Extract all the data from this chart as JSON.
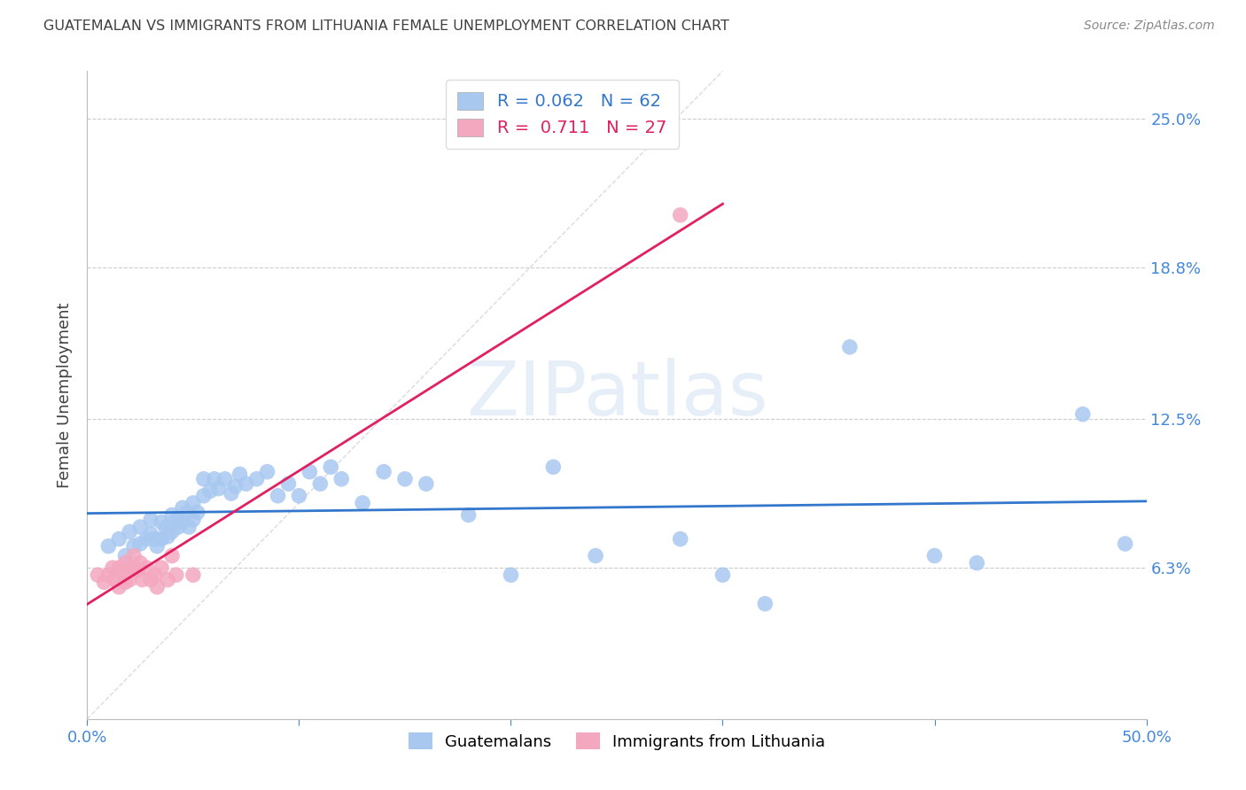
{
  "title": "GUATEMALAN VS IMMIGRANTS FROM LITHUANIA FEMALE UNEMPLOYMENT CORRELATION CHART",
  "source": "Source: ZipAtlas.com",
  "ylabel": "Female Unemployment",
  "ytick_labels": [
    "6.3%",
    "12.5%",
    "18.8%",
    "25.0%"
  ],
  "ytick_values": [
    0.063,
    0.125,
    0.188,
    0.25
  ],
  "xmin": 0.0,
  "xmax": 0.5,
  "ymin": 0.0,
  "ymax": 0.27,
  "legend_blue_r": "0.062",
  "legend_blue_n": "62",
  "legend_pink_r": "0.711",
  "legend_pink_n": "27",
  "blue_color": "#a8c8f0",
  "pink_color": "#f4a8c0",
  "blue_line_color": "#3377cc",
  "pink_line_color": "#e02060",
  "title_color": "#404040",
  "axis_label_color": "#4488dd",
  "ytick_color": "#4488dd",
  "watermark": "ZIPatlas",
  "blue_scatter_x": [
    0.01,
    0.015,
    0.018,
    0.02,
    0.022,
    0.025,
    0.025,
    0.028,
    0.03,
    0.03,
    0.032,
    0.033,
    0.035,
    0.035,
    0.037,
    0.038,
    0.04,
    0.04,
    0.042,
    0.043,
    0.045,
    0.045,
    0.047,
    0.048,
    0.05,
    0.05,
    0.052,
    0.055,
    0.055,
    0.058,
    0.06,
    0.062,
    0.065,
    0.068,
    0.07,
    0.072,
    0.075,
    0.08,
    0.085,
    0.09,
    0.095,
    0.1,
    0.105,
    0.11,
    0.115,
    0.12,
    0.13,
    0.14,
    0.15,
    0.16,
    0.18,
    0.2,
    0.22,
    0.24,
    0.28,
    0.3,
    0.32,
    0.36,
    0.4,
    0.42,
    0.47,
    0.49
  ],
  "blue_scatter_y": [
    0.072,
    0.075,
    0.068,
    0.078,
    0.072,
    0.08,
    0.073,
    0.075,
    0.083,
    0.077,
    0.075,
    0.072,
    0.082,
    0.075,
    0.08,
    0.076,
    0.085,
    0.078,
    0.083,
    0.08,
    0.088,
    0.082,
    0.086,
    0.08,
    0.09,
    0.083,
    0.086,
    0.1,
    0.093,
    0.095,
    0.1,
    0.096,
    0.1,
    0.094,
    0.097,
    0.102,
    0.098,
    0.1,
    0.103,
    0.093,
    0.098,
    0.093,
    0.103,
    0.098,
    0.105,
    0.1,
    0.09,
    0.103,
    0.1,
    0.098,
    0.085,
    0.06,
    0.105,
    0.068,
    0.075,
    0.06,
    0.048,
    0.155,
    0.068,
    0.065,
    0.127,
    0.073
  ],
  "pink_scatter_x": [
    0.005,
    0.008,
    0.01,
    0.012,
    0.013,
    0.015,
    0.015,
    0.017,
    0.018,
    0.018,
    0.02,
    0.02,
    0.022,
    0.022,
    0.024,
    0.025,
    0.026,
    0.028,
    0.03,
    0.032,
    0.033,
    0.035,
    0.038,
    0.04,
    0.042,
    0.05,
    0.28
  ],
  "pink_scatter_y": [
    0.06,
    0.057,
    0.06,
    0.063,
    0.058,
    0.055,
    0.063,
    0.06,
    0.065,
    0.057,
    0.063,
    0.058,
    0.068,
    0.063,
    0.062,
    0.065,
    0.058,
    0.063,
    0.058,
    0.06,
    0.055,
    0.063,
    0.058,
    0.068,
    0.06,
    0.06,
    0.21
  ],
  "pink_line_x_start": 0.0,
  "pink_line_x_end": 0.3,
  "diagonal_line_x": [
    0.0,
    0.3
  ],
  "diagonal_line_y": [
    0.0,
    0.27
  ]
}
